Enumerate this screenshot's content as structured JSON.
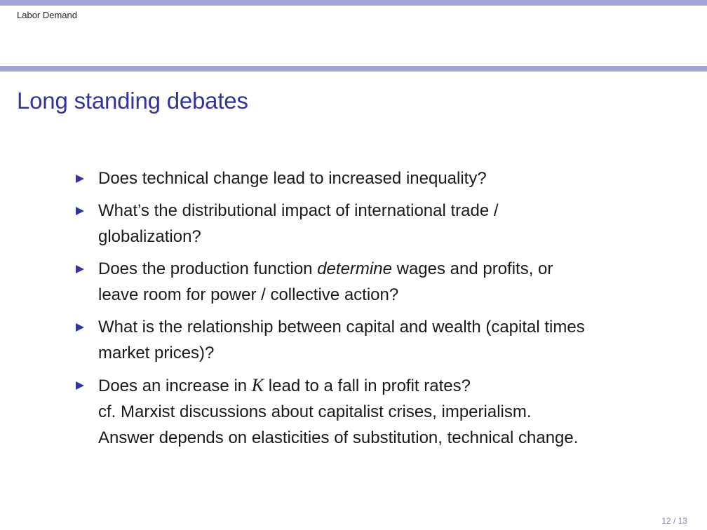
{
  "header": {
    "section": "Labor Demand"
  },
  "frame": {
    "title": "Long standing debates",
    "bullets": {
      "b1": {
        "text": "Does technical change lead to increased inequality?"
      },
      "b2": {
        "line1": "What’s the distributional impact of international trade /",
        "line2": "globalization?"
      },
      "b3": {
        "pre": "Does the production function ",
        "em": "determine",
        "post": " wages and profits, or",
        "line2": "leave room for power / collective action?"
      },
      "b4": {
        "line1": "What is the relationship between capital and wealth (capital times",
        "line2": "market prices)?"
      },
      "b5": {
        "pre": "Does an increase in ",
        "var": "K",
        "post": " lead to a fall in profit rates?",
        "line2": "cf. Marxist discussions about capitalist crises, imperialism.",
        "line3": "Answer depends on elasticities of substitution, technical change."
      }
    }
  },
  "footer": {
    "page": "12 / 13"
  },
  "colors": {
    "accent": "#33339e",
    "bar": "#a3a3d6"
  }
}
